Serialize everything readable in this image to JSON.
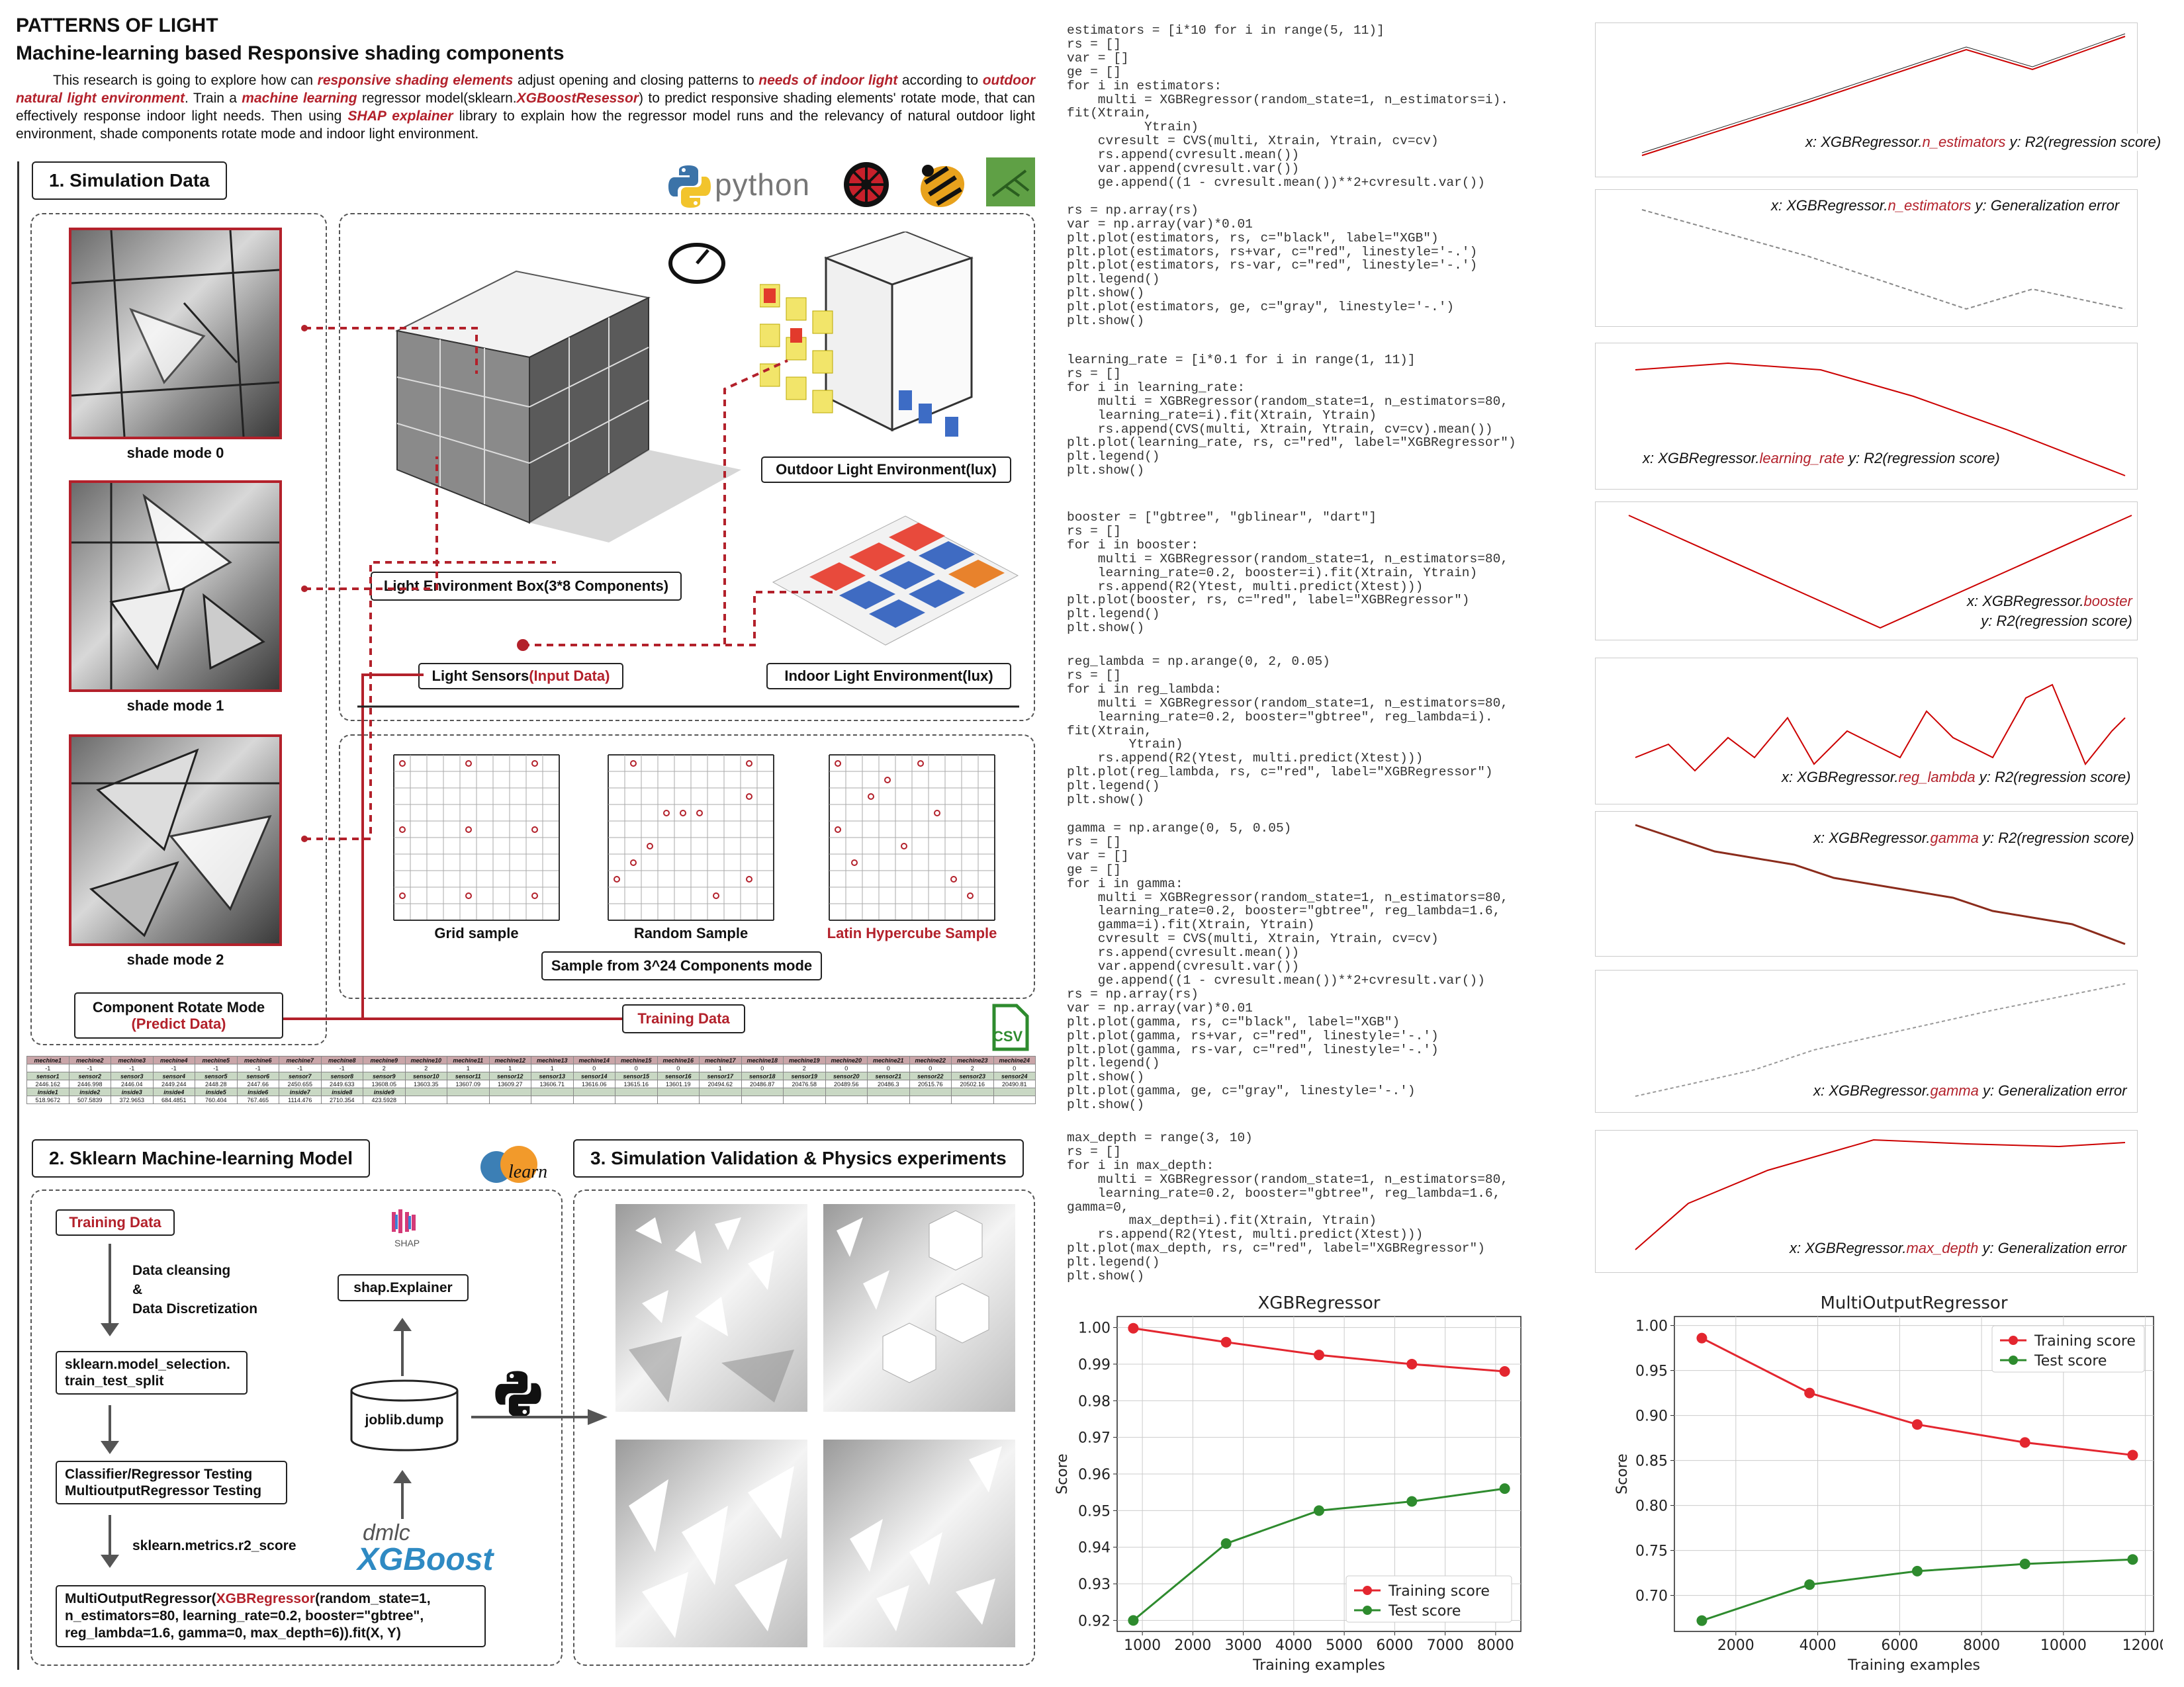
{
  "title": "PATTERNS OF LIGHT",
  "subtitle": "Machine-learning based Responsive shading components",
  "intro": {
    "p1": "This research is going to explore how can ",
    "h1": "responsive shading elements",
    "p2": " adjust opening and closing patterns to ",
    "h2": "needs of indoor light",
    "p3": " according to ",
    "h3": "outdoor natural light environment",
    "p4": ". Train a ",
    "h4": "machine learning",
    "p5": " regressor model(sklearn.",
    "h5": "XGBoostResessor",
    "p6": ") to predict responsive shading elements' rotate mode, that can effectively response indoor light needs. Then using ",
    "h6": "SHAP explainer",
    "p7": " library to explain how the regressor model runs and the relevancy of natural outdoor light environment, shade components rotate mode and indoor light environment."
  },
  "section1": {
    "header": "1. Simulation Data",
    "logo_python": "python",
    "shade_modes": [
      "shade mode 0",
      "shade mode 1",
      "shade mode 2"
    ],
    "outdoor": "Outdoor Light Environment(lux)",
    "box": "Light Environment Box(3*8 Components)",
    "indoor": "Indoor Light Environment(lux)",
    "sensors_a": "Light Sensors",
    "sensors_b": "(Input Data)",
    "grid": "Grid sample",
    "random": "Random Sample",
    "lhs": "Latin Hypercube Sample",
    "sample_from": "Sample from 3^24 Components mode",
    "rotate_a": "Component Rotate Mode",
    "rotate_b": "(Predict Data)",
    "training": "Training Data",
    "csv": "CSV"
  },
  "table": {
    "row1": [
      "mechine1",
      "mechine2",
      "mechine3",
      "mechine4",
      "mechine5",
      "mechine6",
      "mechine7",
      "mechine8",
      "mechine9",
      "mechine10",
      "mechine11",
      "mechine12",
      "mechine13",
      "mechine14",
      "mechine15",
      "mechine16",
      "mechine17",
      "mechine18",
      "mechine19",
      "mechine20",
      "mechine21",
      "mechine22",
      "mechine23",
      "mechine24"
    ],
    "row2": [
      "-1",
      "-1",
      "-1",
      "-1",
      "-1",
      "-1",
      "-1",
      "-1",
      "2",
      "2",
      "1",
      "1",
      "1",
      "0",
      "0",
      "0",
      "1",
      "0",
      "2",
      "0",
      "0",
      "0",
      "2",
      "0"
    ],
    "row3": [
      "sensor1",
      "sensor2",
      "sensor3",
      "sensor4",
      "sensor5",
      "sensor6",
      "sensor7",
      "sensor8",
      "sensor9",
      "sensor10",
      "sensor11",
      "sensor12",
      "sensor13",
      "sensor14",
      "sensor15",
      "sensor16",
      "sensor17",
      "sensor18",
      "sensor19",
      "sensor20",
      "sensor21",
      "sensor22",
      "sensor23",
      "sensor24"
    ],
    "row4": [
      "2446.162",
      "2446.998",
      "2446.04",
      "2449.244",
      "2448.28",
      "2447.66",
      "2450.655",
      "2449.633",
      "13608.05",
      "13603.35",
      "13607.09",
      "13609.27",
      "13606.71",
      "13616.06",
      "13615.16",
      "13601.19",
      "20494.62",
      "20486.87",
      "20476.58",
      "20489.56",
      "20486.3",
      "20515.76",
      "20502.16",
      "20490.81"
    ],
    "row5": [
      "inside1",
      "inside2",
      "inside3",
      "inside4",
      "inside5",
      "inside6",
      "inside7",
      "inside8",
      "inside9"
    ],
    "row6": [
      "518.9672",
      "507.5839",
      "372.9653",
      "684.4851",
      "760.404",
      "767.465",
      "1114.476",
      "2710.354",
      "423.5928"
    ]
  },
  "section2": {
    "header": "2. Sklearn Machine-learning Model",
    "training": "Training Data",
    "cleansing": "Data cleansing",
    "amp": "&",
    "discret": "Data Discretization",
    "split1": "sklearn.model_selection.",
    "split2": "train_test_split",
    "cls1": "Classifier/Regressor Testing",
    "cls2": "MultioutputRegressor Testing",
    "r2": "sklearn.metrics.r2_score",
    "shap_logo": "SHAP",
    "shap": "shap.Explainer",
    "joblib": "joblib.dump",
    "dmlc": "dmlc",
    "xgboost": "XGBoost",
    "sklearn_logo": "learn",
    "final_a": "MultiOutputRegressor(",
    "final_b": "XGBRegressor",
    "final_c": "(random_state=1,",
    "final_d": "n_estimators=80, learning_rate=0.2, booster=\"gbtree\",",
    "final_e": "reg_lambda=1.6, gamma=0, max_depth=6)).fit(X, Y)"
  },
  "section3": {
    "header": "3. Simulation Validation & Physics experiments"
  },
  "code": [
    "estimators = [i*10 for i in range(5, 11)]\nrs = []\nvar = []\nge = []\nfor i in estimators:\n    multi = XGBRegressor(random_state=1, n_estimators=i).\nfit(Xtrain,\n          Ytrain)\n    cvresult = CVS(multi, Xtrain, Ytrain, cv=cv)\n    rs.append(cvresult.mean())\n    var.append(cvresult.var())\n    ge.append((1 - cvresult.mean())**2+cvresult.var())\n\nrs = np.array(rs)\nvar = np.array(var)*0.01\nplt.plot(estimators, rs, c=\"black\", label=\"XGB\")\nplt.plot(estimators, rs+var, c=\"red\", linestyle='-.')\nplt.plot(estimators, rs-var, c=\"red\", linestyle='-.')\nplt.legend()\nplt.show()\nplt.plot(estimators, ge, c=\"gray\", linestyle='-.')\nplt.show()",
    "learning_rate = [i*0.1 for i in range(1, 11)]\nrs = []\nfor i in learning_rate:\n    multi = XGBRegressor(random_state=1, n_estimators=80,\n    learning_rate=i).fit(Xtrain, Ytrain)\n    rs.append(CVS(multi, Xtrain, Ytrain, cv=cv).mean())\nplt.plot(learning_rate, rs, c=\"red\", label=\"XGBRegressor\")\nplt.legend()\nplt.show()",
    "booster = [\"gbtree\", \"gblinear\", \"dart\"]\nrs = []\nfor i in booster:\n    multi = XGBRegressor(random_state=1, n_estimators=80,\n    learning_rate=0.2, booster=i).fit(Xtrain, Ytrain)\n    rs.append(R2(Ytest, multi.predict(Xtest)))\nplt.plot(booster, rs, c=\"red\", label=\"XGBRegressor\")\nplt.legend()\nplt.show()",
    "reg_lambda = np.arange(0, 2, 0.05)\nrs = []\nfor i in reg_lambda:\n    multi = XGBRegressor(random_state=1, n_estimators=80,\n    learning_rate=0.2, booster=\"gbtree\", reg_lambda=i).\nfit(Xtrain,\n        Ytrain)\n    rs.append(R2(Ytest, multi.predict(Xtest)))\nplt.plot(reg_lambda, rs, c=\"red\", label=\"XGBRegressor\")\nplt.legend()\nplt.show()",
    "gamma = np.arange(0, 5, 0.05)\nrs = []\nvar = []\nge = []\nfor i in gamma:\n    multi = XGBRegressor(random_state=1, n_estimators=80,\n    learning_rate=0.2, booster=\"gbtree\", reg_lambda=1.6,\n    gamma=i).fit(Xtrain, Ytrain)\n    cvresult = CVS(multi, Xtrain, Ytrain, cv=cv)\n    rs.append(cvresult.mean())\n    var.append(cvresult.var())\n    ge.append((1 - cvresult.mean())**2+cvresult.var())\nrs = np.array(rs)\nvar = np.array(var)*0.01\nplt.plot(gamma, rs, c=\"black\", label=\"XGB\")\nplt.plot(gamma, rs+var, c=\"red\", linestyle='-.')\nplt.plot(gamma, rs-var, c=\"red\", linestyle='-.')\nplt.legend()\nplt.show()\nplt.plot(gamma, ge, c=\"gray\", linestyle='-.')\nplt.show()",
    "max_depth = range(3, 10)\nrs = []\nfor i in max_depth:\n    multi = XGBRegressor(random_state=1, n_estimators=80,\n    learning_rate=0.2, booster=\"gbtree\", reg_lambda=1.6,\ngamma=0,\n        max_depth=i).fit(Xtrain, Ytrain)\n    rs.append(R2(Ytest, multi.predict(Xtest)))\nplt.plot(max_depth, rs, c=\"red\", label=\"XGBRegressor\")\nplt.legend()\nplt.show()"
  ],
  "panels": [
    {
      "x": "x: XGBRegressor.",
      "xr": "n_estimators",
      "y": " y: R2(regression score)"
    },
    {
      "x": "x: XGBRegressor.",
      "xr": "n_estimators",
      "y": "  y: Generalization error"
    },
    {
      "x": "x: XGBRegressor.",
      "xr": "learning_rate",
      "y": "  y: R2(regression score)"
    },
    {
      "x": "x: XGBRegressor.",
      "xr": "booster",
      "y": "y: R2(regression score)"
    },
    {
      "x": "x: XGBRegressor.",
      "xr": "reg_lambda",
      "y": " y: R2(regression score)"
    },
    {
      "x": "x: XGBRegressor.",
      "xr": "gamma",
      "y": " y: R2(regression score)"
    },
    {
      "x": "x: XGBRegressor.",
      "xr": "gamma",
      "y": " y: Generalization error"
    },
    {
      "x": "x: XGBRegressor.",
      "xr": "max_depth",
      "y": " y: Generalization error"
    }
  ],
  "colors": {
    "accent": "#b3212b",
    "train": "#e3262f",
    "test": "#2e8b2e"
  },
  "chart_data": [
    {
      "type": "line",
      "title": "XGBRegressor",
      "xlabel": "Training examples",
      "ylabel": "Score",
      "x": [
        820,
        2660,
        4500,
        6340,
        8180
      ],
      "series": [
        {
          "name": "Training score",
          "values": [
            0.9998,
            0.996,
            0.9925,
            0.99,
            0.988
          ]
        },
        {
          "name": "Test score",
          "values": [
            0.92,
            0.941,
            0.95,
            0.9525,
            0.956
          ]
        }
      ],
      "xlim": [
        500,
        8500
      ],
      "ylim": [
        0.917,
        1.003
      ],
      "xticks": [
        1000,
        2000,
        3000,
        4000,
        5000,
        6000,
        7000,
        8000
      ],
      "yticks": [
        0.92,
        0.93,
        0.94,
        0.95,
        0.96,
        0.97,
        0.98,
        0.99,
        1.0
      ],
      "xtick_labels": [
        "1000",
        "2000",
        "3000",
        "4000",
        "5000",
        "6000",
        "7000",
        "8000"
      ],
      "ytick_labels": [
        "0.92",
        "0.93",
        "0.94",
        "0.95",
        "0.96",
        "0.97",
        "0.98",
        "0.99",
        "1.00"
      ],
      "grid": true,
      "legend": "bottom-right"
    },
    {
      "type": "line",
      "title": "MultiOutputRegressor",
      "xlabel": "Training examples",
      "ylabel": "Score",
      "x": [
        1170,
        3800,
        6430,
        9060,
        11690
      ],
      "series": [
        {
          "name": "Training score",
          "values": [
            0.986,
            0.925,
            0.89,
            0.87,
            0.856
          ]
        },
        {
          "name": "Test score",
          "values": [
            0.672,
            0.712,
            0.727,
            0.735,
            0.74
          ]
        }
      ],
      "xlim": [
        500,
        12200
      ],
      "ylim": [
        0.66,
        1.01
      ],
      "xticks": [
        2000,
        4000,
        6000,
        8000,
        10000,
        12000
      ],
      "yticks": [
        0.7,
        0.75,
        0.8,
        0.85,
        0.9,
        0.95,
        1.0
      ],
      "xtick_labels": [
        "2000",
        "4000",
        "6000",
        "8000",
        "10000",
        "12000"
      ],
      "ytick_labels": [
        "0.70",
        "0.75",
        "0.80",
        "0.85",
        "0.90",
        "0.95",
        "1.00"
      ],
      "grid": true,
      "legend": "top-right"
    }
  ]
}
